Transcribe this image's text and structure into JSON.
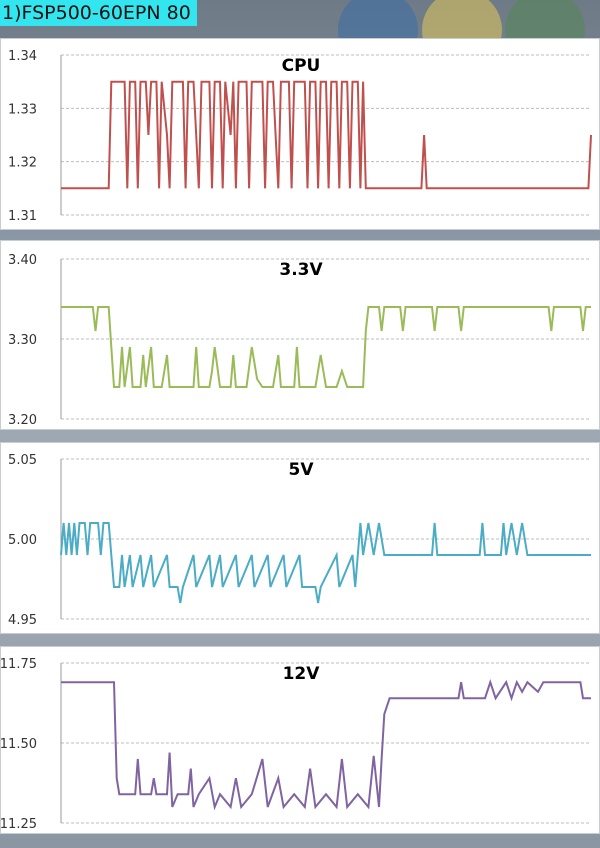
{
  "header": {
    "label": "1)FSP500-60EPN 80"
  },
  "footer": {
    "caption": ""
  },
  "chart_data": [
    {
      "type": "line",
      "title": "CPU",
      "color": "#c0504d",
      "ylim": [
        1.31,
        1.34
      ],
      "yticks": [
        "1.31",
        "1.32",
        "1.33",
        "1.34"
      ],
      "grid": "horizontal-dashed",
      "segments": [
        [
          0,
          1.315
        ],
        [
          0.09,
          1.315
        ],
        [
          0.095,
          1.335
        ],
        [
          0.12,
          1.335
        ],
        [
          0.125,
          1.315
        ],
        [
          0.13,
          1.335
        ],
        [
          0.14,
          1.335
        ],
        [
          0.145,
          1.315
        ],
        [
          0.15,
          1.335
        ],
        [
          0.16,
          1.335
        ],
        [
          0.165,
          1.325
        ],
        [
          0.17,
          1.335
        ],
        [
          0.18,
          1.335
        ],
        [
          0.185,
          1.315
        ],
        [
          0.19,
          1.335
        ],
        [
          0.2,
          1.325
        ],
        [
          0.205,
          1.315
        ],
        [
          0.21,
          1.335
        ],
        [
          0.23,
          1.335
        ],
        [
          0.235,
          1.315
        ],
        [
          0.24,
          1.335
        ],
        [
          0.25,
          1.335
        ],
        [
          0.255,
          1.325
        ],
        [
          0.26,
          1.315
        ],
        [
          0.265,
          1.335
        ],
        [
          0.28,
          1.335
        ],
        [
          0.285,
          1.315
        ],
        [
          0.29,
          1.335
        ],
        [
          0.3,
          1.335
        ],
        [
          0.305,
          1.315
        ],
        [
          0.31,
          1.335
        ],
        [
          0.32,
          1.325
        ],
        [
          0.325,
          1.335
        ],
        [
          0.33,
          1.315
        ],
        [
          0.335,
          1.335
        ],
        [
          0.35,
          1.335
        ],
        [
          0.355,
          1.315
        ],
        [
          0.36,
          1.335
        ],
        [
          0.38,
          1.335
        ],
        [
          0.385,
          1.315
        ],
        [
          0.39,
          1.335
        ],
        [
          0.4,
          1.335
        ],
        [
          0.405,
          1.325
        ],
        [
          0.41,
          1.315
        ],
        [
          0.415,
          1.335
        ],
        [
          0.43,
          1.335
        ],
        [
          0.435,
          1.315
        ],
        [
          0.44,
          1.335
        ],
        [
          0.46,
          1.335
        ],
        [
          0.465,
          1.315
        ],
        [
          0.47,
          1.335
        ],
        [
          0.48,
          1.335
        ],
        [
          0.485,
          1.315
        ],
        [
          0.49,
          1.335
        ],
        [
          0.5,
          1.335
        ],
        [
          0.505,
          1.315
        ],
        [
          0.51,
          1.335
        ],
        [
          0.52,
          1.335
        ],
        [
          0.525,
          1.315
        ],
        [
          0.53,
          1.335
        ],
        [
          0.54,
          1.335
        ],
        [
          0.545,
          1.315
        ],
        [
          0.55,
          1.335
        ],
        [
          0.56,
          1.335
        ],
        [
          0.565,
          1.315
        ],
        [
          0.57,
          1.335
        ],
        [
          0.575,
          1.315
        ],
        [
          0.6,
          1.315
        ],
        [
          0.68,
          1.315
        ],
        [
          0.685,
          1.325
        ],
        [
          0.69,
          1.315
        ],
        [
          0.995,
          1.315
        ],
        [
          1.0,
          1.325
        ]
      ]
    },
    {
      "type": "line",
      "title": "3.3V",
      "color": "#9bbb59",
      "ylim": [
        3.2,
        3.4
      ],
      "yticks": [
        "3.20",
        "3.30",
        "3.40"
      ],
      "grid": "horizontal-dashed",
      "segments": [
        [
          0,
          3.34
        ],
        [
          0.06,
          3.34
        ],
        [
          0.065,
          3.31
        ],
        [
          0.07,
          3.34
        ],
        [
          0.09,
          3.34
        ],
        [
          0.095,
          3.29
        ],
        [
          0.1,
          3.24
        ],
        [
          0.11,
          3.24
        ],
        [
          0.115,
          3.29
        ],
        [
          0.12,
          3.24
        ],
        [
          0.13,
          3.29
        ],
        [
          0.135,
          3.24
        ],
        [
          0.15,
          3.24
        ],
        [
          0.155,
          3.28
        ],
        [
          0.16,
          3.24
        ],
        [
          0.17,
          3.29
        ],
        [
          0.175,
          3.24
        ],
        [
          0.19,
          3.24
        ],
        [
          0.2,
          3.28
        ],
        [
          0.205,
          3.24
        ],
        [
          0.25,
          3.24
        ],
        [
          0.255,
          3.29
        ],
        [
          0.26,
          3.24
        ],
        [
          0.28,
          3.24
        ],
        [
          0.285,
          3.26
        ],
        [
          0.29,
          3.29
        ],
        [
          0.3,
          3.24
        ],
        [
          0.32,
          3.24
        ],
        [
          0.325,
          3.28
        ],
        [
          0.33,
          3.24
        ],
        [
          0.35,
          3.24
        ],
        [
          0.36,
          3.29
        ],
        [
          0.37,
          3.25
        ],
        [
          0.38,
          3.24
        ],
        [
          0.4,
          3.24
        ],
        [
          0.41,
          3.28
        ],
        [
          0.415,
          3.24
        ],
        [
          0.44,
          3.24
        ],
        [
          0.445,
          3.29
        ],
        [
          0.45,
          3.24
        ],
        [
          0.48,
          3.24
        ],
        [
          0.49,
          3.28
        ],
        [
          0.5,
          3.24
        ],
        [
          0.52,
          3.24
        ],
        [
          0.53,
          3.26
        ],
        [
          0.54,
          3.24
        ],
        [
          0.57,
          3.24
        ],
        [
          0.575,
          3.31
        ],
        [
          0.58,
          3.34
        ],
        [
          0.6,
          3.34
        ],
        [
          0.605,
          3.31
        ],
        [
          0.61,
          3.34
        ],
        [
          0.64,
          3.34
        ],
        [
          0.645,
          3.31
        ],
        [
          0.65,
          3.34
        ],
        [
          0.7,
          3.34
        ],
        [
          0.705,
          3.31
        ],
        [
          0.71,
          3.34
        ],
        [
          0.75,
          3.34
        ],
        [
          0.755,
          3.31
        ],
        [
          0.76,
          3.34
        ],
        [
          0.92,
          3.34
        ],
        [
          0.925,
          3.31
        ],
        [
          0.93,
          3.34
        ],
        [
          0.98,
          3.34
        ],
        [
          0.985,
          3.31
        ],
        [
          0.99,
          3.34
        ],
        [
          1.0,
          3.34
        ]
      ]
    },
    {
      "type": "line",
      "title": "5V",
      "color": "#4bacc6",
      "ylim": [
        4.95,
        5.05
      ],
      "yticks": [
        "4.95",
        "5.00",
        "5.05"
      ],
      "grid": "horizontal-dashed",
      "segments": [
        [
          0,
          4.99
        ],
        [
          0.005,
          5.01
        ],
        [
          0.01,
          4.99
        ],
        [
          0.015,
          5.01
        ],
        [
          0.02,
          4.99
        ],
        [
          0.025,
          5.01
        ],
        [
          0.03,
          4.99
        ],
        [
          0.035,
          5.01
        ],
        [
          0.045,
          5.01
        ],
        [
          0.05,
          4.99
        ],
        [
          0.055,
          5.01
        ],
        [
          0.07,
          5.01
        ],
        [
          0.075,
          4.99
        ],
        [
          0.08,
          5.01
        ],
        [
          0.09,
          5.01
        ],
        [
          0.095,
          4.99
        ],
        [
          0.1,
          4.97
        ],
        [
          0.11,
          4.97
        ],
        [
          0.115,
          4.99
        ],
        [
          0.12,
          4.97
        ],
        [
          0.13,
          4.99
        ],
        [
          0.135,
          4.97
        ],
        [
          0.15,
          4.99
        ],
        [
          0.155,
          4.97
        ],
        [
          0.17,
          4.99
        ],
        [
          0.175,
          4.97
        ],
        [
          0.2,
          4.99
        ],
        [
          0.205,
          4.97
        ],
        [
          0.22,
          4.97
        ],
        [
          0.225,
          4.96
        ],
        [
          0.23,
          4.97
        ],
        [
          0.25,
          4.99
        ],
        [
          0.255,
          4.97
        ],
        [
          0.28,
          4.99
        ],
        [
          0.285,
          4.97
        ],
        [
          0.3,
          4.99
        ],
        [
          0.305,
          4.97
        ],
        [
          0.33,
          4.99
        ],
        [
          0.335,
          4.97
        ],
        [
          0.36,
          4.99
        ],
        [
          0.365,
          4.97
        ],
        [
          0.39,
          4.99
        ],
        [
          0.395,
          4.97
        ],
        [
          0.42,
          4.99
        ],
        [
          0.425,
          4.97
        ],
        [
          0.45,
          4.99
        ],
        [
          0.455,
          4.97
        ],
        [
          0.48,
          4.97
        ],
        [
          0.485,
          4.96
        ],
        [
          0.49,
          4.97
        ],
        [
          0.52,
          4.99
        ],
        [
          0.525,
          4.97
        ],
        [
          0.55,
          4.99
        ],
        [
          0.555,
          4.97
        ],
        [
          0.56,
          4.99
        ],
        [
          0.565,
          5.01
        ],
        [
          0.57,
          4.99
        ],
        [
          0.58,
          5.01
        ],
        [
          0.59,
          4.99
        ],
        [
          0.6,
          5.01
        ],
        [
          0.61,
          4.99
        ],
        [
          0.7,
          4.99
        ],
        [
          0.705,
          5.01
        ],
        [
          0.71,
          4.99
        ],
        [
          0.79,
          4.99
        ],
        [
          0.795,
          5.01
        ],
        [
          0.8,
          4.99
        ],
        [
          0.83,
          4.99
        ],
        [
          0.835,
          5.01
        ],
        [
          0.84,
          4.99
        ],
        [
          0.85,
          5.01
        ],
        [
          0.86,
          4.99
        ],
        [
          0.87,
          5.01
        ],
        [
          0.88,
          4.99
        ],
        [
          1.0,
          4.99
        ]
      ]
    },
    {
      "type": "line",
      "title": "12V",
      "color": "#8064a2",
      "ylim": [
        11.25,
        11.75
      ],
      "yticks": [
        "11.25",
        "11.50",
        "11.75"
      ],
      "grid": "horizontal-dashed",
      "segments": [
        [
          0,
          11.69
        ],
        [
          0.1,
          11.69
        ],
        [
          0.105,
          11.39
        ],
        [
          0.11,
          11.34
        ],
        [
          0.14,
          11.34
        ],
        [
          0.145,
          11.45
        ],
        [
          0.15,
          11.34
        ],
        [
          0.17,
          11.34
        ],
        [
          0.175,
          11.39
        ],
        [
          0.18,
          11.34
        ],
        [
          0.2,
          11.34
        ],
        [
          0.205,
          11.47
        ],
        [
          0.21,
          11.3
        ],
        [
          0.22,
          11.34
        ],
        [
          0.24,
          11.34
        ],
        [
          0.245,
          11.42
        ],
        [
          0.25,
          11.3
        ],
        [
          0.26,
          11.34
        ],
        [
          0.28,
          11.39
        ],
        [
          0.29,
          11.3
        ],
        [
          0.3,
          11.34
        ],
        [
          0.32,
          11.3
        ],
        [
          0.33,
          11.39
        ],
        [
          0.34,
          11.3
        ],
        [
          0.36,
          11.34
        ],
        [
          0.38,
          11.45
        ],
        [
          0.39,
          11.3
        ],
        [
          0.41,
          11.39
        ],
        [
          0.42,
          11.3
        ],
        [
          0.44,
          11.34
        ],
        [
          0.46,
          11.3
        ],
        [
          0.47,
          11.42
        ],
        [
          0.48,
          11.3
        ],
        [
          0.5,
          11.34
        ],
        [
          0.52,
          11.3
        ],
        [
          0.53,
          11.45
        ],
        [
          0.54,
          11.3
        ],
        [
          0.56,
          11.34
        ],
        [
          0.58,
          11.3
        ],
        [
          0.59,
          11.46
        ],
        [
          0.6,
          11.3
        ],
        [
          0.605,
          11.45
        ],
        [
          0.61,
          11.59
        ],
        [
          0.62,
          11.64
        ],
        [
          0.75,
          11.64
        ],
        [
          0.755,
          11.69
        ],
        [
          0.76,
          11.64
        ],
        [
          0.8,
          11.64
        ],
        [
          0.81,
          11.69
        ],
        [
          0.82,
          11.64
        ],
        [
          0.84,
          11.69
        ],
        [
          0.85,
          11.64
        ],
        [
          0.86,
          11.69
        ],
        [
          0.87,
          11.66
        ],
        [
          0.88,
          11.69
        ],
        [
          0.9,
          11.66
        ],
        [
          0.91,
          11.69
        ],
        [
          0.98,
          11.69
        ],
        [
          0.985,
          11.64
        ],
        [
          1.0,
          11.64
        ]
      ]
    }
  ]
}
